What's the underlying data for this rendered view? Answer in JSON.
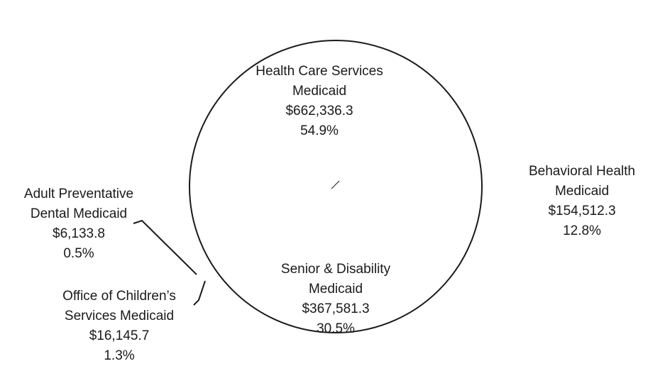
{
  "chart_data": {
    "type": "pie",
    "title": "",
    "slices": [
      {
        "label_lines": [
          "Health Care Services",
          "Medicaid"
        ],
        "value": "$662,336.3",
        "percent": "54.9%",
        "share": 54.9
      },
      {
        "label_lines": [
          "Behavioral Health",
          "Medicaid"
        ],
        "value": "$154,512.3",
        "percent": "12.8%",
        "share": 12.8
      },
      {
        "label_lines": [
          "Senior & Disability",
          "Medicaid"
        ],
        "value": "$367,581.3",
        "percent": "30.5%",
        "share": 30.5
      },
      {
        "label_lines": [
          "Office of Children’s",
          "Services Medicaid"
        ],
        "value": "$16,145.7",
        "percent": "1.3%",
        "share": 1.3
      },
      {
        "label_lines": [
          "Adult Preventative",
          "Dental Medicaid"
        ],
        "value": "$6,133.8",
        "percent": "0.5%",
        "share": 0.5
      }
    ],
    "colors": {
      "outline": "#1a1a1a",
      "fill": "#ffffff",
      "text": "#1a1a1a"
    }
  }
}
